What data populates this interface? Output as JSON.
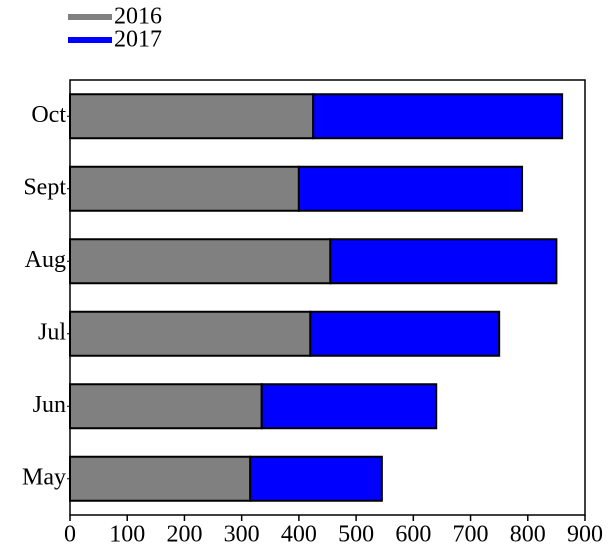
{
  "chart_data": {
    "type": "stacked-barh",
    "categories": [
      "May",
      "Jun",
      "Jul",
      "Aug",
      "Sept",
      "Oct"
    ],
    "series": [
      {
        "name": "2016",
        "color": "#808080",
        "values": [
          315,
          335,
          420,
          455,
          400,
          425
        ]
      },
      {
        "name": "2017",
        "color": "#0000ff",
        "values": [
          230,
          305,
          330,
          395,
          390,
          435
        ]
      }
    ],
    "xlim": [
      0,
      900
    ],
    "xticks": [
      0,
      100,
      200,
      300,
      400,
      500,
      600,
      700,
      800,
      900
    ],
    "legend": "top-left",
    "grid": false
  }
}
